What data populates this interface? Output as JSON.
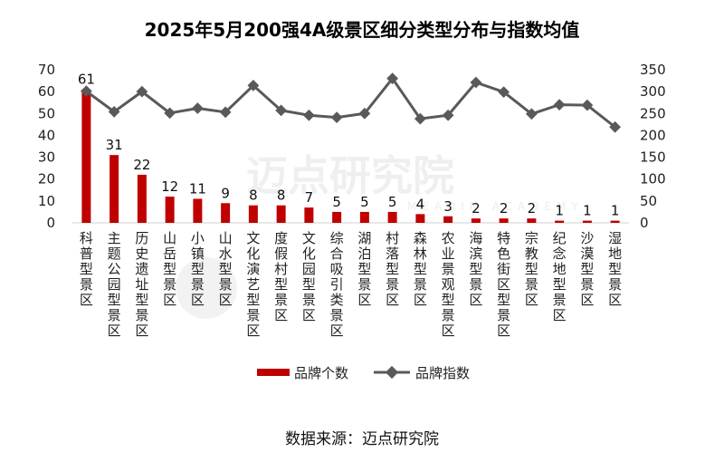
{
  "chart_data": {
    "type": "bar",
    "title": "2025年5月200强4A级景区细分类型分布与指数均值",
    "categories": [
      "科普型景区",
      "主题公园型景区",
      "历史遗址型景区",
      "山岳型景区",
      "小镇型景区",
      "山水型景区",
      "文化演艺型景区",
      "度假村型景区",
      "文化园型景区",
      "综合吸引类景区",
      "湖泊型景区",
      "村落型景区",
      "森林型景区",
      "农业景观型景区",
      "海滨型景区",
      "特色街区型景区",
      "宗教型景区",
      "纪念地型景区",
      "沙漠型景区",
      "湿地型景区"
    ],
    "series": [
      {
        "name": "品牌个数",
        "axis": "left",
        "mark": "bar",
        "color": "#C00000",
        "values": [
          61,
          31,
          22,
          12,
          11,
          9,
          8,
          8,
          7,
          5,
          5,
          5,
          4,
          3,
          2,
          2,
          2,
          1,
          1,
          1
        ]
      },
      {
        "name": "品牌指数",
        "axis": "right",
        "mark": "line",
        "color": "#595959",
        "values": [
          301,
          254,
          300,
          251,
          262,
          253,
          314,
          257,
          246,
          241,
          250,
          330,
          238,
          246,
          321,
          299,
          249,
          270,
          269,
          219
        ]
      }
    ],
    "ylim_left": [
      0,
      70
    ],
    "yticks_left": [
      0,
      10,
      20,
      30,
      40,
      50,
      60,
      70
    ],
    "ylim_right": [
      0,
      350
    ],
    "yticks_right": [
      0,
      50,
      100,
      150,
      200,
      250,
      300,
      350
    ],
    "legend": "bottom",
    "grid": false
  },
  "source": "数据来源：迈点研究院",
  "watermark": {
    "name": "迈点研究院",
    "sub": "MEADIN ACADEMY"
  }
}
